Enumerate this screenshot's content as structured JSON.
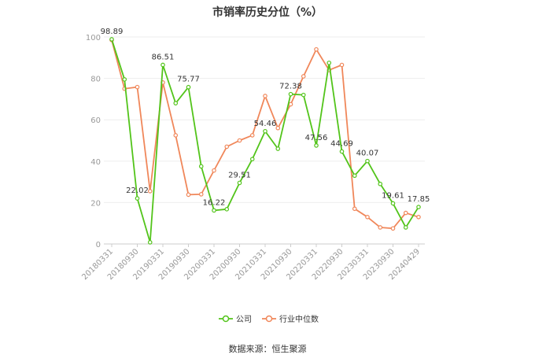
{
  "chart_data": {
    "type": "line",
    "title": "市销率历史分位（%）",
    "source": "数据来源：恒生聚源",
    "ylim": [
      0,
      100
    ],
    "yticks": [
      "0",
      "20",
      "40",
      "60",
      "80",
      "100"
    ],
    "grid": true,
    "legend_position": "bottom",
    "x_labels": [
      "20180331",
      "20180930",
      "20190331",
      "20190930",
      "20200331",
      "20200930",
      "20210331",
      "20210930",
      "20220331",
      "20220930",
      "20230331",
      "20230930",
      "20240429"
    ],
    "series": [
      {
        "name": "公司",
        "color": "#52c41a",
        "values": [
          98.89,
          79.5,
          22.02,
          0.8,
          86.51,
          68.0,
          75.77,
          37.5,
          16.22,
          16.8,
          29.51,
          41.0,
          54.46,
          46.0,
          72.38,
          72.0,
          47.56,
          87.5,
          44.69,
          33.0,
          40.07,
          29.0,
          19.61,
          8.0,
          17.85
        ]
      },
      {
        "name": "行业中位数",
        "color": "#f0875a",
        "values": [
          98.5,
          75.0,
          75.8,
          25.5,
          78.0,
          52.5,
          23.8,
          24.0,
          35.5,
          47.0,
          50.0,
          52.5,
          71.5,
          56.0,
          67.5,
          81.0,
          94.0,
          84.0,
          86.5,
          17.0,
          13.0,
          8.0,
          7.5,
          15.0,
          13.0
        ]
      }
    ],
    "data_labels": [
      {
        "series": 0,
        "index": 0,
        "text": "98.89"
      },
      {
        "series": 0,
        "index": 2,
        "text": "22.02"
      },
      {
        "series": 0,
        "index": 4,
        "text": "86.51"
      },
      {
        "series": 0,
        "index": 6,
        "text": "75.77"
      },
      {
        "series": 0,
        "index": 8,
        "text": "16.22"
      },
      {
        "series": 0,
        "index": 10,
        "text": "29.51"
      },
      {
        "series": 0,
        "index": 12,
        "text": "54.46"
      },
      {
        "series": 0,
        "index": 14,
        "text": "72.38"
      },
      {
        "series": 0,
        "index": 16,
        "text": "47.56"
      },
      {
        "series": 0,
        "index": 18,
        "text": "44.69"
      },
      {
        "series": 0,
        "index": 20,
        "text": "40.07"
      },
      {
        "series": 0,
        "index": 22,
        "text": "19.61"
      },
      {
        "series": 0,
        "index": 24,
        "text": "17.85"
      }
    ]
  }
}
